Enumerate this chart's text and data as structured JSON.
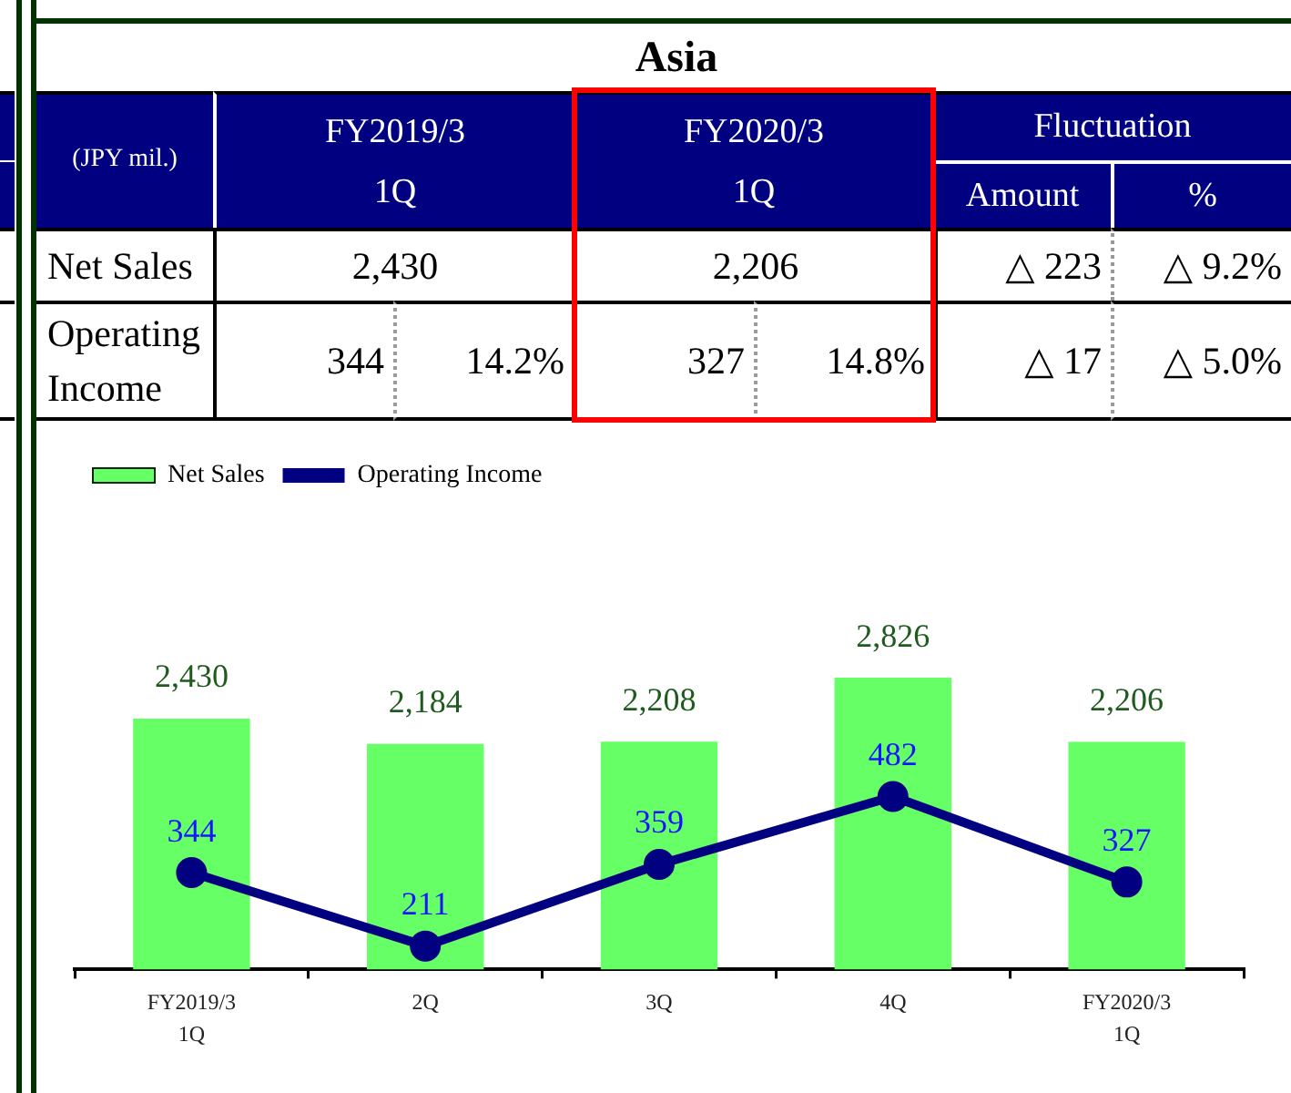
{
  "chart_data": [
    {
      "type": "other",
      "title": "Asia",
      "annotations": [
        "(JPY mil.)",
        "FY2019/3\n1Q",
        "FY2020/3\n1Q",
        "Fluctuation",
        "Amount",
        "%",
        "Net Sales",
        "2,430",
        "2,206",
        "△ 223",
        "△ 9.2%",
        "Operating Income",
        "344",
        "14.2%",
        "327",
        "14.8%",
        "△ 17",
        "△ 5.0%"
      ]
    },
    {
      "type": "bar",
      "categories": [
        "FY2019/3\n1Q",
        "2Q",
        "3Q",
        "4Q",
        "FY2020/3\n1Q"
      ],
      "series": [
        {
          "name": "Net Sales",
          "type": "bar",
          "color": "#66ff66",
          "values": [
            2430,
            2184,
            2208,
            2826,
            2206
          ],
          "value_labels": [
            "2,430",
            "2,184",
            "2,208",
            "2,826",
            "2,206"
          ]
        },
        {
          "name": "Operating Income",
          "type": "line",
          "axis": "y2",
          "color": "#000080",
          "values": [
            344,
            211,
            359,
            482,
            327
          ],
          "value_labels": [
            "344",
            "211",
            "359",
            "482",
            "327"
          ]
        }
      ],
      "legend": "top left",
      "marker": "circle",
      "tick_labels": "x"
    }
  ]
}
